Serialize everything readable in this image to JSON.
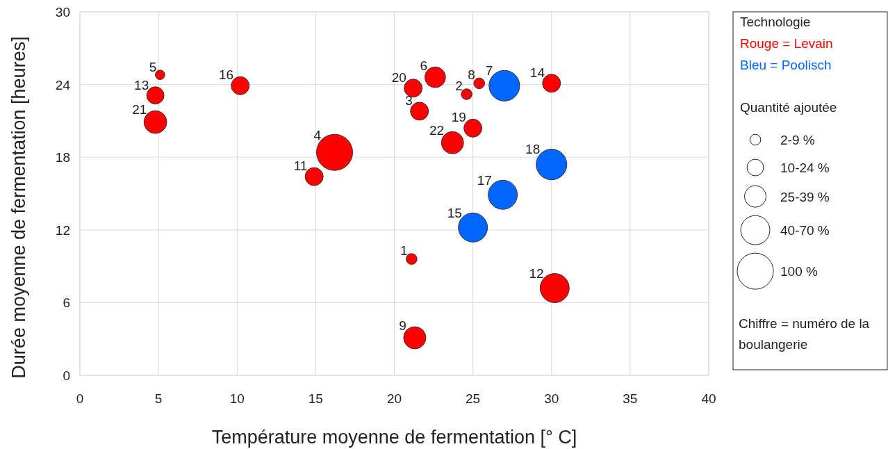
{
  "chart_data": {
    "type": "bubble",
    "xlabel": "Température moyenne de fermentation [° C]",
    "ylabel": "Durée moyenne de fermentation [heures]",
    "xlim": [
      0,
      40
    ],
    "xticks": [
      0,
      5,
      10,
      15,
      20,
      25,
      30,
      35,
      40
    ],
    "ylim": [
      0,
      30
    ],
    "yticks": [
      0,
      6,
      12,
      18,
      24,
      30
    ],
    "grid": true,
    "legend": "right",
    "legend_title": "Technologie",
    "size_legend": [
      {
        "value": 0.09,
        "label": "2-9 %"
      },
      {
        "value": 0.21,
        "label": "10-24 %"
      },
      {
        "value": 0.36,
        "label": "25-39 %"
      },
      {
        "value": 0.65,
        "label": "40-70 %"
      },
      {
        "value": 1,
        "label": "100 %"
      }
    ],
    "series": [
      {
        "name": "Rouge = Levain",
        "color": "#ff0000",
        "x": [
          21.1,
          24.6,
          21.6,
          16.2,
          5.1,
          22.6,
          25.4,
          21.3,
          14.9,
          30.2,
          4.8,
          30.0,
          10.2,
          25.0,
          21.2,
          4.8,
          23.7
        ],
        "values": [
          9.6,
          23.2,
          21.8,
          18.4,
          24.8,
          24.6,
          24.1,
          3.1,
          16.4,
          7.2,
          23.1,
          24.1,
          23.9,
          20.4,
          23.7,
          20.9,
          19.2
        ],
        "sizes": [
          0.09,
          0.09,
          0.25,
          1,
          0.07,
          0.33,
          0.09,
          0.38,
          0.25,
          0.65,
          0.23,
          0.25,
          0.25,
          0.25,
          0.25,
          0.4,
          0.38
        ]
      },
      {
        "name": "Bleu = Poolisch",
        "color": "#0066ff",
        "x": [
          27.0,
          25.0,
          26.9,
          30.0
        ],
        "values": [
          23.9,
          12.2,
          14.9,
          17.4
        ],
        "sizes": [
          0.72,
          0.65,
          0.65,
          0.72
        ]
      }
    ],
    "annotations": [
      "Quantité ajoutée",
      "Chiffre = numéro de la boulangerie",
      {
        "text": "1",
        "x": 21.1,
        "y": 9.6
      },
      {
        "text": "2",
        "x": 24.6,
        "y": 23.2
      },
      {
        "text": "3",
        "x": 21.6,
        "y": 21.8
      },
      {
        "text": "4",
        "x": 16.2,
        "y": 18.4
      },
      {
        "text": "5",
        "x": 5.1,
        "y": 24.8
      },
      {
        "text": "6",
        "x": 22.6,
        "y": 24.6
      },
      {
        "text": "8",
        "x": 25.4,
        "y": 24.1
      },
      {
        "text": "9",
        "x": 21.3,
        "y": 3.1
      },
      {
        "text": "11",
        "x": 14.9,
        "y": 16.4
      },
      {
        "text": "12",
        "x": 30.2,
        "y": 7.2
      },
      {
        "text": "13",
        "x": 4.8,
        "y": 23.1
      },
      {
        "text": "14",
        "x": 30.0,
        "y": 24.1
      },
      {
        "text": "16",
        "x": 10.2,
        "y": 23.9
      },
      {
        "text": "19",
        "x": 25.0,
        "y": 20.4
      },
      {
        "text": "20",
        "x": 21.2,
        "y": 23.7
      },
      {
        "text": "21",
        "x": 4.8,
        "y": 20.9
      },
      {
        "text": "22",
        "x": 23.7,
        "y": 19.2
      },
      {
        "text": "7",
        "x": 27.0,
        "y": 23.9
      },
      {
        "text": "15",
        "x": 25.0,
        "y": 12.2
      },
      {
        "text": "17",
        "x": 26.9,
        "y": 14.9
      },
      {
        "text": "18",
        "x": 30.0,
        "y": 17.4
      }
    ]
  }
}
